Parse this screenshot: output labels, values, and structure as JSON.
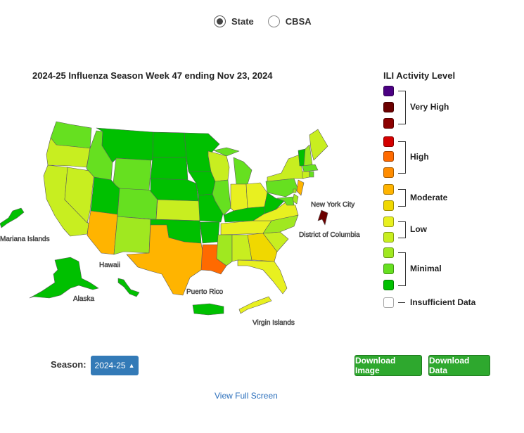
{
  "view_toggle": {
    "options": [
      {
        "label": "State",
        "selected": true
      },
      {
        "label": "CBSA",
        "selected": false
      }
    ]
  },
  "map": {
    "title": "2024-25 Influenza Season Week 47 ending Nov 23, 2024",
    "labels": {
      "mariana": "Mariana Islands",
      "alaska": "Alaska",
      "hawaii": "Hawaii",
      "puerto_rico": "Puerto Rico",
      "virgin_islands": "Virgin Islands",
      "nyc": "New York City",
      "dc": "District of Columbia"
    },
    "state_levels": {
      "WA": "minimal_2",
      "OR": "low_2",
      "CA": "low_2",
      "NV": "low_2",
      "ID": "minimal_2",
      "MT": "minimal_3",
      "WY": "minimal_2",
      "UT": "minimal_3",
      "AZ": "moderate_2",
      "CO": "minimal_2",
      "NM": "minimal_1",
      "ND": "minimal_3",
      "SD": "minimal_3",
      "NE": "minimal_3",
      "KS": "low_2",
      "OK": "minimal_3",
      "TX": "moderate_2",
      "MN": "minimal_3",
      "IA": "minimal_3",
      "MO": "minimal_3",
      "AR": "minimal_3",
      "LA": "high_2",
      "WI": "low_2",
      "IL": "minimal_2",
      "MI": "minimal_2",
      "IN": "low_1",
      "OH": "low_1",
      "KY": "minimal_3",
      "TN": "low_1",
      "MS": "minimal_1",
      "AL": "low_2",
      "GA": "moderate_1",
      "FL": "low_1",
      "SC": "low_2",
      "NC": "minimal_1",
      "VA": "low_1",
      "WV": "minimal_3",
      "PA": "minimal_2",
      "NY": "low_2",
      "VT": "minimal_3",
      "NH": "minimal_1",
      "ME": "low_2",
      "MA": "minimal_2",
      "CT": "low_2",
      "NJ": "moderate_2",
      "DE": "minimal_1",
      "MD": "minimal_2",
      "RI": "minimal_2",
      "NYC": "very_high_2",
      "DC": "minimal_1",
      "AK": "minimal_3",
      "HI": "minimal_3",
      "PR": "minimal_3",
      "VI": "low_1",
      "MP": "minimal_3"
    }
  },
  "legend": {
    "title": "ILI Activity Level",
    "groups": [
      {
        "label": "Very High",
        "swatches": [
          "very_high_3",
          "very_high_2",
          "very_high_1"
        ]
      },
      {
        "label": "High",
        "swatches": [
          "high_3",
          "high_2",
          "high_1"
        ]
      },
      {
        "label": "Moderate",
        "swatches": [
          "moderate_2",
          "moderate_1"
        ]
      },
      {
        "label": "Low",
        "swatches": [
          "low_1",
          "low_2"
        ]
      },
      {
        "label": "Minimal",
        "swatches": [
          "minimal_1",
          "minimal_2",
          "minimal_3"
        ]
      },
      {
        "label": "Insufficient Data",
        "swatches": [
          "insufficient"
        ]
      }
    ]
  },
  "colors": {
    "very_high_3": "#4b0082",
    "very_high_2": "#6b0000",
    "very_high_1": "#8b0000",
    "high_3": "#d40000",
    "high_2": "#ff6a00",
    "high_1": "#ff8c00",
    "moderate_2": "#ffb400",
    "moderate_1": "#f0d800",
    "low_1": "#e8f020",
    "low_2": "#c8ee20",
    "minimal_1": "#a0e820",
    "minimal_2": "#66e020",
    "minimal_3": "#00c000",
    "insufficient": "#ffffff"
  },
  "controls": {
    "season_label": "Season:",
    "season_value": "2024-25",
    "download_image": "Download Image",
    "download_data": "Download Data",
    "view_full_screen": "View Full Screen"
  }
}
